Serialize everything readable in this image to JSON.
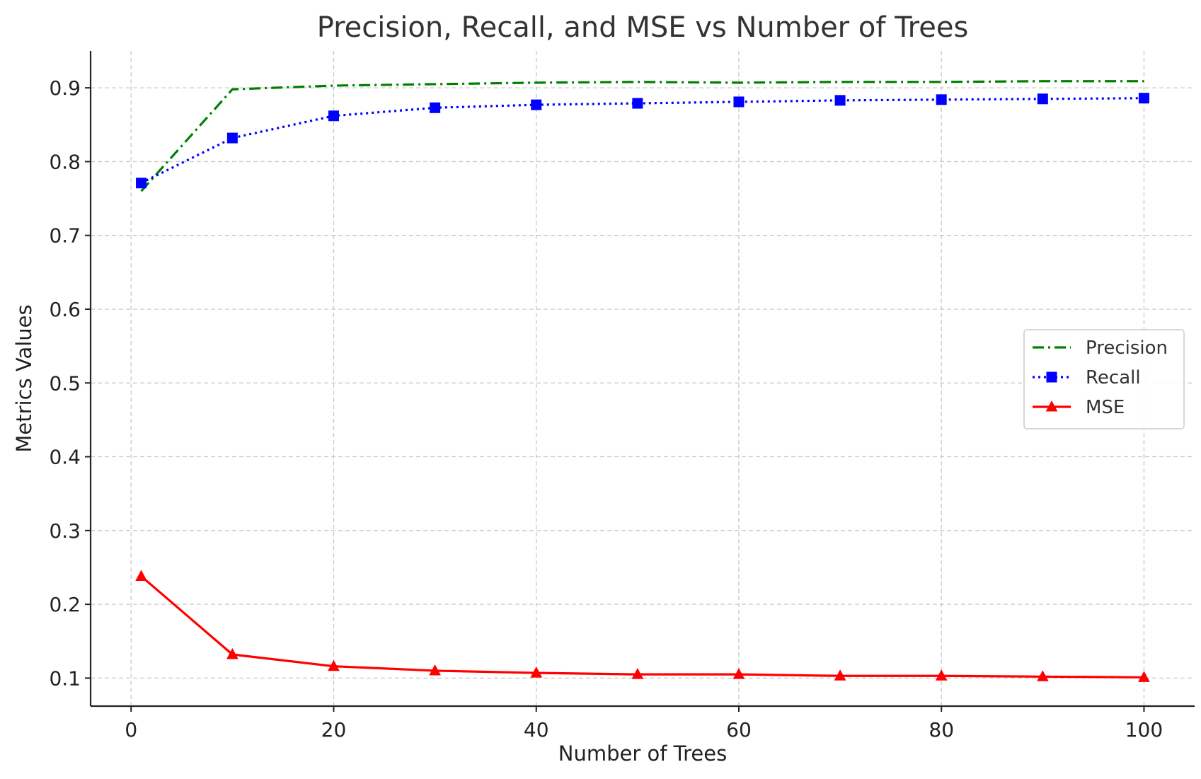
{
  "chart_data": {
    "type": "line",
    "title": "Precision, Recall, and MSE vs Number of Trees",
    "xlabel": "Number of Trees",
    "ylabel": "Metrics Values",
    "xlim": [
      -4,
      105
    ],
    "ylim": [
      0.062,
      0.95
    ],
    "x_ticks": [
      0,
      20,
      40,
      60,
      80,
      100
    ],
    "x_tick_labels": [
      "0",
      "20",
      "40",
      "60",
      "80",
      "100"
    ],
    "y_ticks": [
      0.1,
      0.2,
      0.3,
      0.4,
      0.5,
      0.6,
      0.7,
      0.8,
      0.9
    ],
    "y_tick_labels": [
      "0.1",
      "0.2",
      "0.3",
      "0.4",
      "0.5",
      "0.6",
      "0.7",
      "0.8",
      "0.9"
    ],
    "grid": true,
    "legend_position": "center-right",
    "x": [
      1,
      10,
      20,
      30,
      40,
      50,
      60,
      70,
      80,
      90,
      100
    ],
    "series": [
      {
        "name": "Precision",
        "color": "#008000",
        "line_style": "dash-dot",
        "marker": "none",
        "values": [
          0.76,
          0.898,
          0.903,
          0.905,
          0.907,
          0.908,
          0.907,
          0.908,
          0.908,
          0.909,
          0.909
        ]
      },
      {
        "name": "Recall",
        "color": "#0000ff",
        "line_style": "dotted",
        "marker": "square",
        "values": [
          0.771,
          0.832,
          0.862,
          0.873,
          0.877,
          0.879,
          0.881,
          0.883,
          0.884,
          0.885,
          0.886
        ]
      },
      {
        "name": "MSE",
        "color": "#ff0000",
        "line_style": "solid",
        "marker": "triangle",
        "values": [
          0.238,
          0.132,
          0.116,
          0.11,
          0.107,
          0.105,
          0.105,
          0.103,
          0.103,
          0.102,
          0.101
        ]
      }
    ]
  }
}
